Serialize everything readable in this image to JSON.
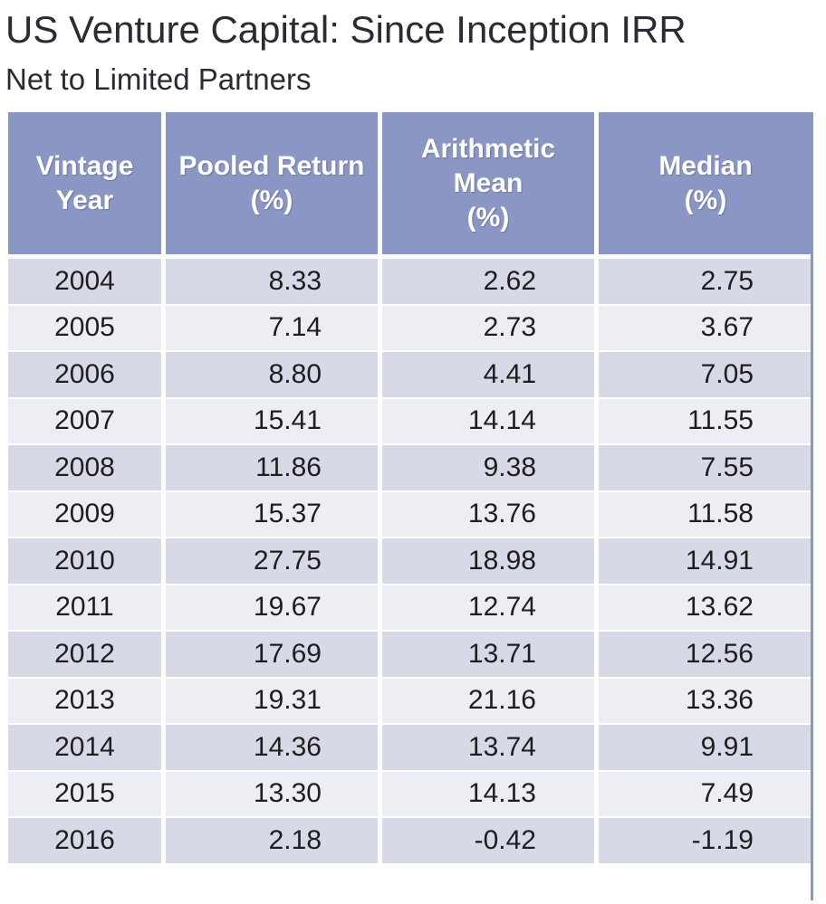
{
  "title": "US Venture Capital: Since Inception IRR",
  "subtitle": "Net to Limited Partners",
  "colors": {
    "header_bg": "#8a96c4",
    "row_dark": "#d7d9e6",
    "row_light": "#eceef4"
  },
  "chart_data": {
    "type": "table",
    "title": "US Venture Capital: Since Inception IRR",
    "subtitle": "Net to Limited Partners",
    "columns": [
      {
        "lines": [
          "Vintage",
          "Year"
        ]
      },
      {
        "lines": [
          "Pooled Return",
          "(%)"
        ]
      },
      {
        "lines": [
          "Arithmetic",
          "Mean",
          "(%)"
        ]
      },
      {
        "lines": [
          "Median",
          "(%)"
        ]
      }
    ],
    "rows": [
      [
        "2004",
        "8.33",
        "2.62",
        "2.75"
      ],
      [
        "2005",
        "7.14",
        "2.73",
        "3.67"
      ],
      [
        "2006",
        "8.80",
        "4.41",
        "7.05"
      ],
      [
        "2007",
        "15.41",
        "14.14",
        "11.55"
      ],
      [
        "2008",
        "11.86",
        "9.38",
        "7.55"
      ],
      [
        "2009",
        "15.37",
        "13.76",
        "11.58"
      ],
      [
        "2010",
        "27.75",
        "18.98",
        "14.91"
      ],
      [
        "2011",
        "19.67",
        "12.74",
        "13.62"
      ],
      [
        "2012",
        "17.69",
        "13.71",
        "12.56"
      ],
      [
        "2013",
        "19.31",
        "21.16",
        "13.36"
      ],
      [
        "2014",
        "14.36",
        "13.74",
        "9.91"
      ],
      [
        "2015",
        "13.30",
        "14.13",
        "7.49"
      ],
      [
        "2016",
        "2.18",
        "-0.42",
        "-1.19"
      ]
    ]
  }
}
